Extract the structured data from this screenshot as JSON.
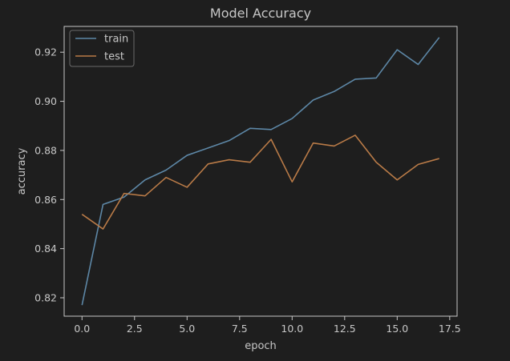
{
  "chart_data": {
    "type": "line",
    "title": "Model Accuracy",
    "xlabel": "epoch",
    "ylabel": "accuracy",
    "xlim": [
      -0.85,
      17.85
    ],
    "ylim": [
      0.8125,
      0.9305
    ],
    "xticks": [
      0.0,
      2.5,
      5.0,
      7.5,
      10.0,
      12.5,
      15.0,
      17.5
    ],
    "xtick_labels": [
      "0.0",
      "2.5",
      "5.0",
      "7.5",
      "10.0",
      "12.5",
      "15.0",
      "17.5"
    ],
    "yticks": [
      0.82,
      0.84,
      0.86,
      0.88,
      0.9,
      0.92
    ],
    "ytick_labels": [
      "0.82",
      "0.84",
      "0.86",
      "0.88",
      "0.90",
      "0.92"
    ],
    "legend_position": "top-left",
    "grid": false,
    "x": [
      0,
      1,
      2,
      3,
      4,
      5,
      6,
      7,
      8,
      9,
      10,
      11,
      12,
      13,
      14,
      15,
      16,
      17
    ],
    "series": [
      {
        "name": "train",
        "color": "#5d87a6",
        "values": [
          0.817,
          0.858,
          0.861,
          0.868,
          0.872,
          0.878,
          0.881,
          0.884,
          0.889,
          0.8885,
          0.893,
          0.9005,
          0.904,
          0.909,
          0.9095,
          0.921,
          0.915,
          0.926
        ]
      },
      {
        "name": "test",
        "color": "#b87a47",
        "values": [
          0.854,
          0.848,
          0.8625,
          0.8615,
          0.869,
          0.865,
          0.8745,
          0.8762,
          0.8752,
          0.8845,
          0.8672,
          0.883,
          0.8818,
          0.8862,
          0.8752,
          0.868,
          0.8743,
          0.8767
        ]
      }
    ]
  },
  "colors": {
    "background": "#1e1e1e",
    "axes": "#c7c7c7",
    "legend_border": "#6a6a6a"
  }
}
